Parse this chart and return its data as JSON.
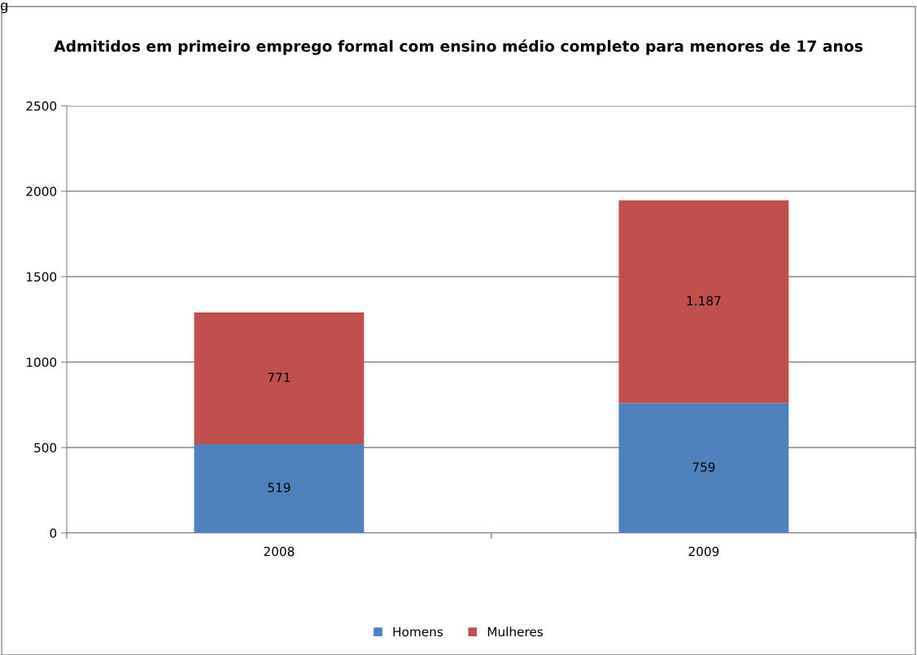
{
  "chart_data": {
    "type": "bar",
    "title": "Admitidos em primeiro emprego formal com ensino médio completo para menores de 17 anos",
    "categories": [
      "2008",
      "2009"
    ],
    "stacked": true,
    "series": [
      {
        "name": "Homens",
        "color": "#4f81bd",
        "values": [
          519,
          759
        ],
        "value_labels": [
          "519",
          "759"
        ]
      },
      {
        "name": "Mulheres",
        "color": "#c0504d",
        "values": [
          771,
          1187
        ],
        "value_labels": [
          "771",
          "1.187"
        ]
      }
    ],
    "ylim": [
      0,
      2500
    ],
    "yticks": [
      0,
      500,
      1000,
      1500,
      2000,
      2500
    ],
    "grid": "y",
    "legend": "bottom",
    "annotations": [
      "g"
    ]
  }
}
